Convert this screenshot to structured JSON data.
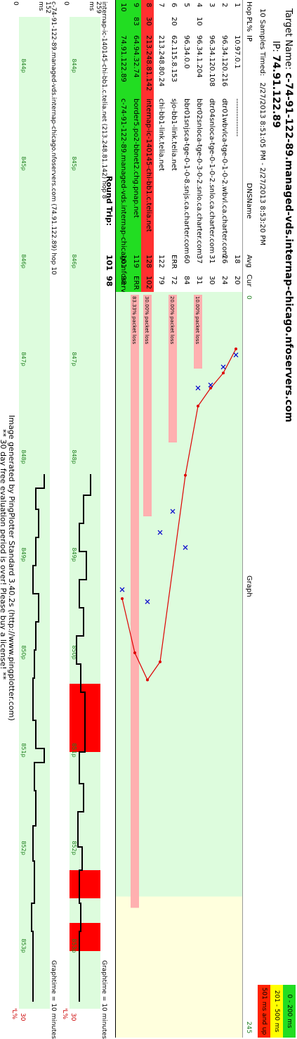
{
  "header": {
    "target_label": "Target Name:",
    "target_name": "c-74-91-122-89.managed-vds.internap-chicago.nfoservers.com",
    "ip_label": "IP:",
    "ip_value": "74.91.122.89",
    "samples_label": "10 Samples Timed:",
    "samples_range": "2/27/2013 8:51:05 PM - 2/27/2013 8:53:20 PM"
  },
  "legend": [
    {
      "label": "0 - 200 ms",
      "color": "#22dd22"
    },
    {
      "label": "201 - 500 ms",
      "color": "#ffff00"
    },
    {
      "label": "501 ms and up",
      "color": "#ff2200"
    }
  ],
  "columns": {
    "hop": "Hop",
    "pl": "PL%",
    "ip": "IP",
    "dns": "DNSName",
    "avg": "Avg",
    "cur": "Cur",
    "graph": "Graph"
  },
  "graph_axis": {
    "min": "0",
    "max": "245"
  },
  "hops": [
    {
      "hop": "1",
      "pl": "",
      "ip": "10.97.0.1",
      "dns": "---------------",
      "avg": "18",
      "cur": "20",
      "loss_label": ""
    },
    {
      "hop": "2",
      "pl": "",
      "ip": "96.34.120.216",
      "dns": "dtr01wbvlca-tge-0-1-0-2.wbvl.ca.charter.com",
      "avg": "26",
      "cur": "24",
      "loss_label": ""
    },
    {
      "hop": "3",
      "pl": "",
      "ip": "96.34.120.108",
      "dns": "dtr04snloca-tge-0-1-0-2.snlo.ca.charter.com",
      "avg": "31",
      "cur": "30",
      "loss_label": ""
    },
    {
      "hop": "4",
      "pl": "10",
      "ip": "96.34.1.204",
      "dns": "bbr02snloca-tge-0-3-0-2.snlo.ca.charter.com",
      "avg": "37",
      "cur": "31",
      "loss_label": "10.00% packet loss"
    },
    {
      "hop": "5",
      "pl": "",
      "ip": "96.34.0.0",
      "dns": "bbr01snjsca-tge-0-1-0-8.snjs.ca.charter.com",
      "avg": "60",
      "cur": "84",
      "loss_label": ""
    },
    {
      "hop": "6",
      "pl": "20",
      "ip": "62.115.8.153",
      "dns": "sjo-bb1-link.telia.net",
      "avg": "ERR",
      "cur": "72",
      "loss_label": "20.00% packet loss"
    },
    {
      "hop": "7",
      "pl": "",
      "ip": "213.248.80.24",
      "dns": "chi-bb1-link.telia.net",
      "avg": "122",
      "cur": "79",
      "loss_label": ""
    },
    {
      "hop": "8",
      "pl": "30",
      "ip": "213.248.81.142",
      "dns": "internap-ic-140145-chi-bb1.c.telia.net",
      "avg": "128",
      "cur": "102",
      "loss_label": "30.00% packet loss"
    },
    {
      "hop": "9",
      "pl": "83",
      "ip": "64.94.32.74",
      "dns": "border5.po2-bbnet2.chg.pnap.net",
      "avg": "119",
      "cur": "ERR",
      "loss_label": "83.33% packet loss"
    },
    {
      "hop": "10",
      "pl": "",
      "ip": "74.91.122.89",
      "dns": "c-74-91-122-89.managed-vds.internap-chicago.nfoservers.com",
      "avg": "101",
      "cur": "98",
      "loss_label": ""
    }
  ],
  "round_trip": {
    "label": "Round Trip:",
    "avg": "101",
    "cur": "98"
  },
  "timeline1": {
    "title": "internap-ic-140145-chi-bb1.c.telia.net (213.248.81.142) hop 8",
    "graphtime": "Graphtime = 10 minutes",
    "ymax": "259",
    "unit": "ms",
    "zero": "0",
    "pl_max": "30",
    "pl_label": "PL%"
  },
  "timeline2": {
    "title": "c-74-91-122-89.managed-vds.internap-chicago.nfoservers.com (74.91.122.89) hop 10",
    "graphtime": "Graphtime = 10 minutes",
    "ymax": "152",
    "unit": "ms",
    "zero": "0",
    "pl_max": "30",
    "pl_label": "PL%"
  },
  "time_ticks": [
    "844p",
    "845p",
    "846p",
    "847p",
    "848p",
    "849p",
    "850p",
    "851p",
    "852p",
    "853p"
  ],
  "footer": {
    "line1": "Image generated by PingPlotter Standard 3.40.2s (http://www.pingplotter.com)",
    "line2": "** 30 day free evaluation period is over! Please buy a license! **"
  },
  "colors": {
    "good": "#22dd22",
    "warn": "#ffff00",
    "bad": "#ff2200",
    "row_highlight": "#ee3333",
    "graph_bg_green": "#ddfcdd",
    "graph_bg_yellow": "#ffffdd",
    "loss_bar": "#ffb0b0"
  }
}
